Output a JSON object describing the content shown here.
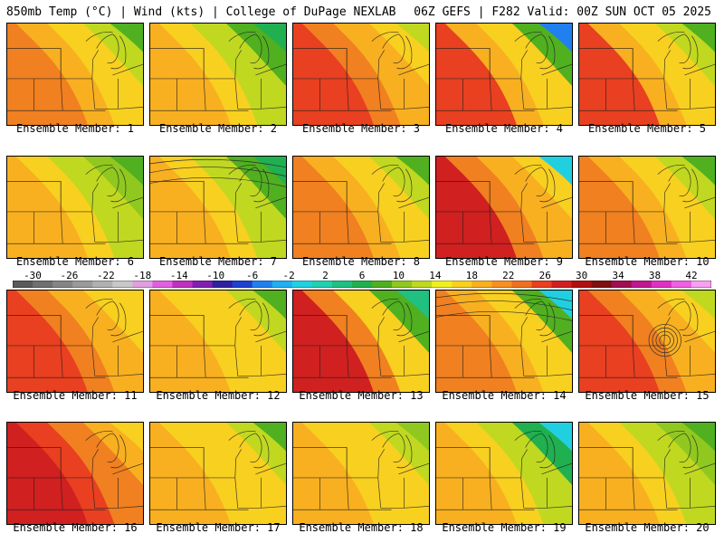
{
  "header": {
    "left": "850mb Temp (°C) | Wind (kts) | College of DuPage NEXLAB",
    "right": "06Z GEFS | F282 Valid: 00Z SUN OCT 05 2025"
  },
  "colorbar": {
    "tick_labels": [
      "-30",
      "-26",
      "-22",
      "-18",
      "-14",
      "-10",
      "-6",
      "-2",
      "2",
      "6",
      "10",
      "14",
      "18",
      "22",
      "26",
      "30",
      "34",
      "38",
      "42"
    ],
    "colors": [
      "#5a5a5a",
      "#707070",
      "#858585",
      "#9a9a9a",
      "#b0b0b0",
      "#c8c8c8",
      "#e0a0e0",
      "#e060e0",
      "#c030c0",
      "#8020b0",
      "#3020a0",
      "#2040d0",
      "#2080f0",
      "#20b0f0",
      "#20d0e0",
      "#20d0b0",
      "#20c080",
      "#20b050",
      "#50b020",
      "#90c820",
      "#c0d820",
      "#f0f020",
      "#f8d020",
      "#f8b020",
      "#f89020",
      "#f07020",
      "#e84020",
      "#d02020",
      "#b01010",
      "#801010",
      "#a01050",
      "#c01890",
      "#e030c0",
      "#f060e0",
      "#f8a0f0"
    ]
  },
  "members": [
    {
      "label": "Ensemble Member: 1",
      "palette": [
        "#f08020",
        "#f8b020",
        "#f8d020",
        "#c0d820",
        "#50b020"
      ],
      "contours": false
    },
    {
      "label": "Ensemble Member: 2",
      "palette": [
        "#f8b020",
        "#f8d020",
        "#c0d820",
        "#50b020",
        "#20b050"
      ],
      "contours": false
    },
    {
      "label": "Ensemble Member: 3",
      "palette": [
        "#e84020",
        "#f08020",
        "#f8b020",
        "#f8d020",
        "#c0d820"
      ],
      "contours": false
    },
    {
      "label": "Ensemble Member: 4",
      "palette": [
        "#e84020",
        "#f8b020",
        "#f8d020",
        "#50b020",
        "#2080f0"
      ],
      "contours": false
    },
    {
      "label": "Ensemble Member: 5",
      "palette": [
        "#e84020",
        "#f8b020",
        "#f8d020",
        "#c0d820",
        "#50b020"
      ],
      "contours": false
    },
    {
      "label": "Ensemble Member: 6",
      "palette": [
        "#f8b020",
        "#f8d020",
        "#c0d820",
        "#90c820",
        "#50b020"
      ],
      "contours": false
    },
    {
      "label": "Ensemble Member: 7",
      "palette": [
        "#f8b020",
        "#f8d020",
        "#c0d820",
        "#50b020",
        "#20b050"
      ],
      "contours": true
    },
    {
      "label": "Ensemble Member: 8",
      "palette": [
        "#f08020",
        "#f8b020",
        "#f8d020",
        "#c0d820",
        "#50b020"
      ],
      "contours": false
    },
    {
      "label": "Ensemble Member: 9",
      "palette": [
        "#d02020",
        "#f08020",
        "#f8b020",
        "#f8d020",
        "#20d0e0"
      ],
      "contours": false
    },
    {
      "label": "Ensemble Member: 10",
      "palette": [
        "#f08020",
        "#f8b020",
        "#f8d020",
        "#c0d820",
        "#50b020"
      ],
      "contours": false
    },
    {
      "label": "Ensemble Member: 11",
      "palette": [
        "#e84020",
        "#f08020",
        "#f8b020",
        "#f8d020",
        "#f8d020"
      ],
      "contours": false
    },
    {
      "label": "Ensemble Member: 12",
      "palette": [
        "#f8b020",
        "#f8d020",
        "#f8d020",
        "#c0d820",
        "#50b020"
      ],
      "contours": false
    },
    {
      "label": "Ensemble Member: 13",
      "palette": [
        "#d02020",
        "#f08020",
        "#f8d020",
        "#50b020",
        "#20c080"
      ],
      "contours": false
    },
    {
      "label": "Ensemble Member: 14",
      "palette": [
        "#f08020",
        "#f8b020",
        "#f8d020",
        "#50b020",
        "#20d0e0"
      ],
      "contours": true
    },
    {
      "label": "Ensemble Member: 15",
      "palette": [
        "#e84020",
        "#f08020",
        "#f8b020",
        "#f8d020",
        "#c0d820"
      ],
      "contours": true
    },
    {
      "label": "Ensemble Member: 16",
      "palette": [
        "#d02020",
        "#e84020",
        "#f08020",
        "#f8b020",
        "#f8d020"
      ],
      "contours": false
    },
    {
      "label": "Ensemble Member: 17",
      "palette": [
        "#f8b020",
        "#f8d020",
        "#f8d020",
        "#c0d820",
        "#50b020"
      ],
      "contours": false
    },
    {
      "label": "Ensemble Member: 18",
      "palette": [
        "#f8b020",
        "#f8d020",
        "#f8d020",
        "#c0d820",
        "#90c820"
      ],
      "contours": false
    },
    {
      "label": "Ensemble Member: 19",
      "palette": [
        "#f8b020",
        "#f8d020",
        "#c0d820",
        "#20b050",
        "#20d0e0"
      ],
      "contours": false
    },
    {
      "label": "Ensemble Member: 20",
      "palette": [
        "#f8b020",
        "#f8d020",
        "#c0d820",
        "#90c820",
        "#50b020"
      ],
      "contours": false
    }
  ]
}
